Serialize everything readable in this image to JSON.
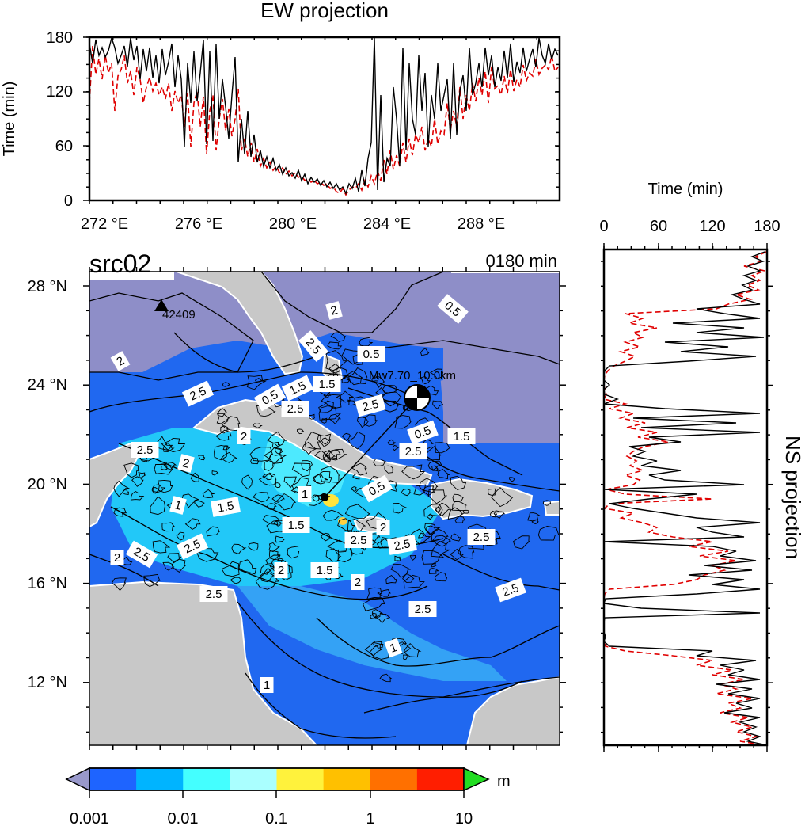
{
  "source_label": "src02",
  "time_label": "0180 min",
  "ew_panel": {
    "title": "EW projection",
    "ylabel": "Time (min)",
    "y_ticks": [
      "0",
      "60",
      "120",
      "180"
    ],
    "x_ticks": [
      "272 °E",
      "276 °E",
      "280 °E",
      "284 °E",
      "288 °E"
    ]
  },
  "ns_panel": {
    "title": "NS projection",
    "xlabel": "Time (min)",
    "x_ticks": [
      "0",
      "60",
      "120",
      "180"
    ]
  },
  "map": {
    "lat_ticks": [
      "28 °N",
      "24 °N",
      "20 °N",
      "16 °N",
      "12 °N"
    ],
    "station_label": "42409",
    "event_label": "Mw7.70_10.0km",
    "contour_labels": [
      "1",
      "2",
      "0.5",
      "2.5",
      "0.5",
      "2",
      "2.5",
      "1.5",
      "1.5",
      "0.5",
      "2.5",
      "2.5",
      "0.5",
      "1.5",
      "2.5",
      "2.5",
      "2",
      "2",
      "1",
      "1.5",
      "1",
      "1.5",
      "0.5",
      "2",
      "2.5",
      "2.5",
      "2.5",
      "2",
      "2.5",
      "2.5",
      "2",
      "1.5",
      "2",
      "2.5",
      "2.5",
      "1",
      "2.5",
      "1"
    ],
    "colors": {
      "ocean": "#8e8ec8",
      "land": "#c8c8c8",
      "wave_low": "#1e64ff",
      "wave_mid": "#20e8ff"
    }
  },
  "colorbar": {
    "unit": "m",
    "tick_labels": [
      "0.001",
      "0.01",
      "0.1",
      "1",
      "10"
    ],
    "colors": [
      "#1e64ff",
      "#00b4ff",
      "#44ffff",
      "#aaffff",
      "#fff23c",
      "#ffc000",
      "#ff7000",
      "#ff1e00"
    ],
    "under_color": "#9999cc",
    "over_color": "#22dd22"
  }
}
